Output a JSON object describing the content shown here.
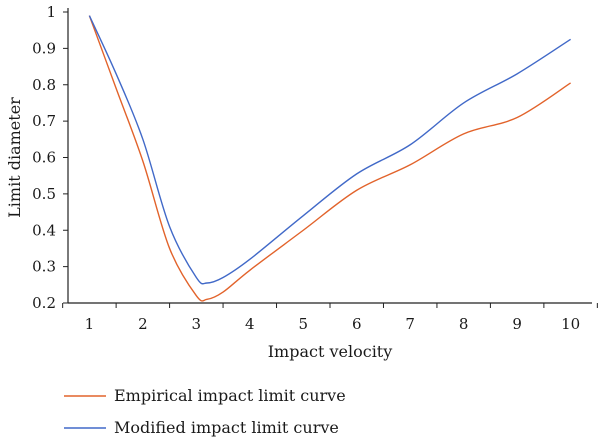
{
  "chart_data": {
    "type": "line",
    "title": "",
    "xlabel": "Impact velocity",
    "ylabel": "Limit diameter",
    "xlim": [
      0.6,
      10.4
    ],
    "ylim": [
      0.2,
      1.0
    ],
    "x_ticks": [
      "1",
      "2",
      "3",
      "4",
      "5",
      "6",
      "7",
      "8",
      "9",
      "10"
    ],
    "y_ticks": [
      "0.2",
      "0.3",
      "0.4",
      "0.5",
      "0.6",
      "0.7",
      "0.8",
      "0.9",
      "1"
    ],
    "grid": false,
    "legend_position": "bottom",
    "series": [
      {
        "name": "Empirical impact limit curve",
        "color": "#e2632b",
        "x": [
          1,
          1.5,
          2,
          2.5,
          3,
          3.2,
          3.5,
          4,
          5,
          6,
          7,
          8,
          9,
          10
        ],
        "y": [
          0.99,
          0.79,
          0.59,
          0.35,
          0.22,
          0.21,
          0.23,
          0.29,
          0.4,
          0.51,
          0.58,
          0.665,
          0.71,
          0.805
        ]
      },
      {
        "name": "Modified impact limit curve",
        "color": "#4169c8",
        "x": [
          1,
          1.5,
          2,
          2.5,
          3,
          3.2,
          3.5,
          4,
          5,
          6,
          7,
          8,
          9,
          10
        ],
        "y": [
          0.99,
          0.83,
          0.65,
          0.41,
          0.27,
          0.255,
          0.27,
          0.32,
          0.44,
          0.555,
          0.635,
          0.75,
          0.83,
          0.925
        ]
      }
    ]
  }
}
